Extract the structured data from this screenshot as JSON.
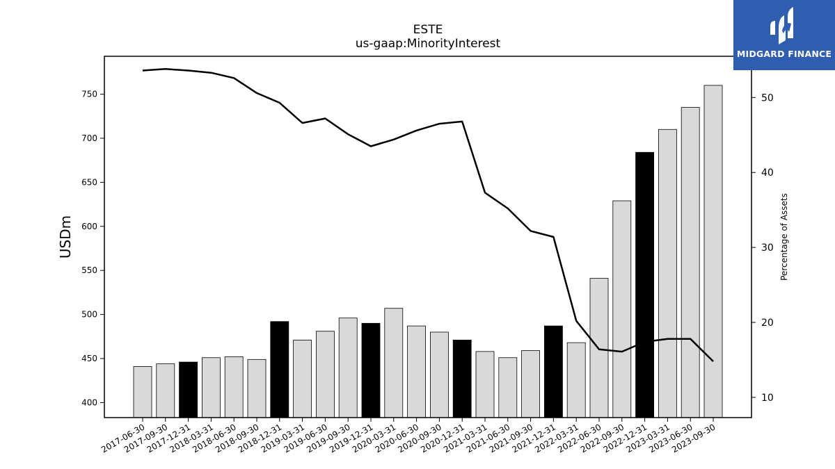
{
  "chart_data": {
    "type": "bar",
    "title": "ESTE",
    "subtitle": "us-gaap:MinorityInterest",
    "ylabel": "USDm",
    "y2label": "Percentage of Assets",
    "ylim": [
      383,
      793
    ],
    "y2lim": [
      7.3,
      55.5
    ],
    "yticks": [
      400,
      450,
      500,
      550,
      600,
      650,
      700,
      750
    ],
    "y2ticks": [
      10,
      20,
      30,
      40,
      50
    ],
    "categories": [
      "2017-06-30",
      "2017-09-30",
      "2017-12-31",
      "2018-03-31",
      "2018-06-30",
      "2018-09-30",
      "2018-12-31",
      "2019-03-31",
      "2019-06-30",
      "2019-09-30",
      "2019-12-31",
      "2020-03-31",
      "2020-06-30",
      "2020-09-30",
      "2020-12-31",
      "2021-03-31",
      "2021-06-30",
      "2021-09-30",
      "2021-12-31",
      "2022-03-31",
      "2022-06-30",
      "2022-09-30",
      "2022-12-31",
      "2023-03-31",
      "2023-06-30",
      "2023-09-30"
    ],
    "series": [
      {
        "type": "bar",
        "values": [
          441,
          444,
          446,
          451,
          452,
          449,
          492,
          471,
          481,
          496,
          490,
          507,
          487,
          480,
          471,
          458,
          451,
          459,
          487,
          468,
          541,
          629,
          684,
          710,
          735,
          760
        ],
        "colors": [
          "#d9d9d9",
          "#d9d9d9",
          "#000000",
          "#d9d9d9",
          "#d9d9d9",
          "#d9d9d9",
          "#000000",
          "#d9d9d9",
          "#d9d9d9",
          "#d9d9d9",
          "#000000",
          "#d9d9d9",
          "#d9d9d9",
          "#d9d9d9",
          "#000000",
          "#d9d9d9",
          "#d9d9d9",
          "#d9d9d9",
          "#000000",
          "#d9d9d9",
          "#d9d9d9",
          "#d9d9d9",
          "#000000",
          "#d9d9d9",
          "#d9d9d9",
          "#d9d9d9"
        ]
      },
      {
        "type": "line",
        "axis": "right",
        "values": [
          53.6,
          53.8,
          53.6,
          53.3,
          52.6,
          50.6,
          49.3,
          46.6,
          47.2,
          45.1,
          43.5,
          44.4,
          45.6,
          46.5,
          46.8,
          37.3,
          35.2,
          32.2,
          31.4,
          20.2,
          16.4,
          16.1,
          17.4,
          17.8,
          17.8,
          14.8
        ],
        "color": "#000000"
      }
    ],
    "grid": false,
    "legend": "none"
  },
  "logo": {
    "text": "MIDGARD FINANCE",
    "color": "#2f5db0"
  }
}
